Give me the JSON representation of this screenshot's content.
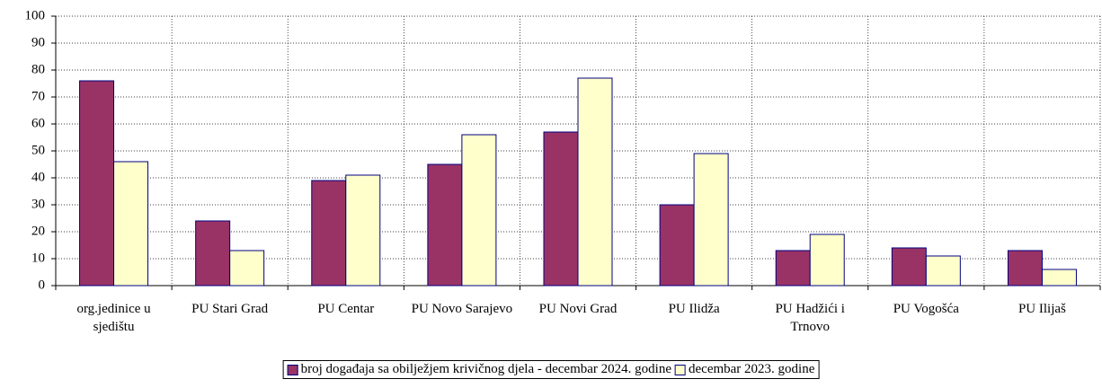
{
  "chart_data": {
    "type": "bar",
    "categories": [
      "org.jedinice u sjedištu",
      "PU Stari Grad",
      "PU Centar",
      "PU Novo Sarajevo",
      "PU Novi Grad",
      "PU Ilidža",
      "PU Hadžići i Trnovo",
      "PU Vogošća",
      "PU Ilijaš"
    ],
    "series": [
      {
        "name": "broj događaja sa obilježjem krivičnog djela - decembar 2024. godine",
        "color": "#993366",
        "values": [
          76,
          24,
          39,
          45,
          57,
          30,
          13,
          14,
          13
        ]
      },
      {
        "name": "decembar 2023. godine",
        "color": "#ffffcc",
        "values": [
          46,
          13,
          41,
          56,
          77,
          49,
          19,
          11,
          6
        ]
      }
    ],
    "ylim": [
      0,
      100
    ],
    "yticks": [
      0,
      10,
      20,
      30,
      40,
      50,
      60,
      70,
      80,
      90,
      100
    ],
    "grid": true,
    "legend": "bottom"
  }
}
